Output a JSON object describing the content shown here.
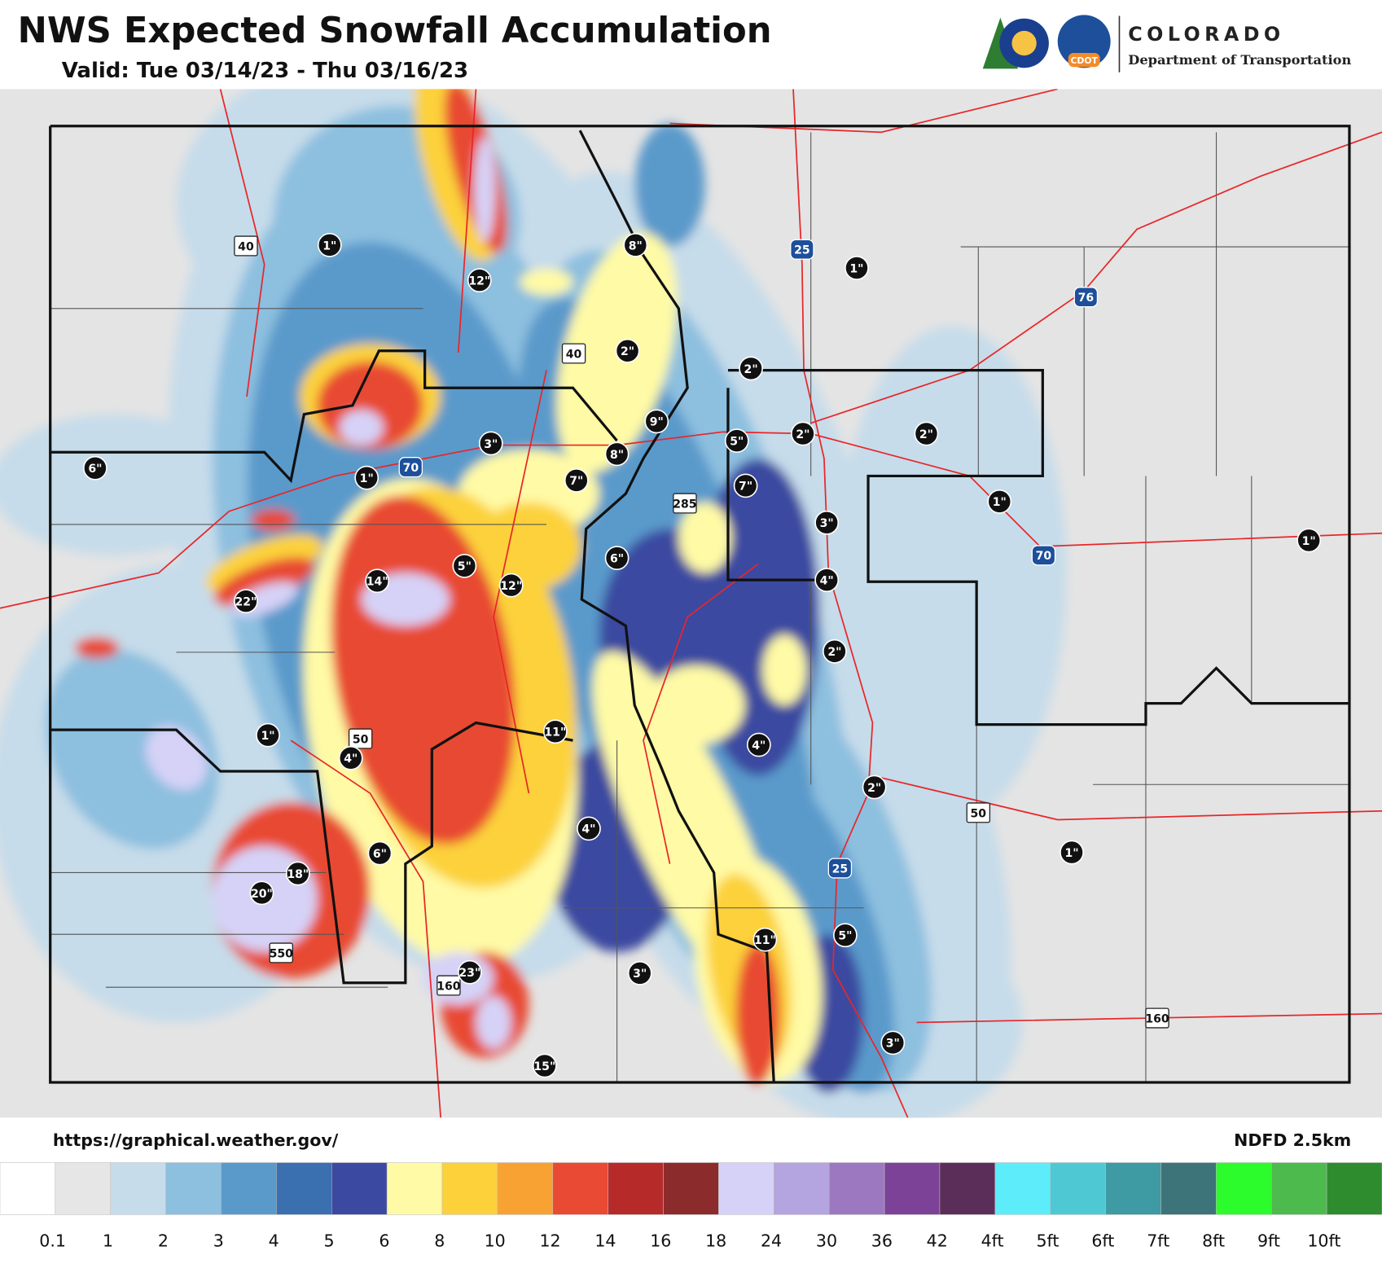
{
  "header": {
    "title": "NWS Expected Snowfall Accumulation",
    "valid": "Valid: Tue 03/14/23 - Thu 03/16/23"
  },
  "logo": {
    "name": "COLORADO",
    "department": "Department of Transportation",
    "badge": "CDOT"
  },
  "map": {
    "snow_labels": [
      "1\"",
      "12\"",
      "8\"",
      "1\"",
      "2\"",
      "2\"",
      "9\"",
      "3\"",
      "8\"",
      "5\"",
      "2\"",
      "2\"",
      "6\"",
      "1\"",
      "7\"",
      "7\"",
      "1\"",
      "3\"",
      "5\"",
      "6\"",
      "14\"",
      "12\"",
      "4\"",
      "1\"",
      "22\"",
      "2\"",
      "1\"",
      "11\"",
      "4\"",
      "4\"",
      "2\"",
      "4\"",
      "6\"",
      "1\"",
      "18\"",
      "20\"",
      "11\"",
      "5\"",
      "23\"",
      "3\"",
      "15\"",
      "3\""
    ],
    "highway_shields": [
      "40",
      "40",
      "25",
      "76",
      "70",
      "70",
      "285",
      "50",
      "50",
      "25",
      "550",
      "160",
      "160"
    ]
  },
  "footer": {
    "source": "https://graphical.weather.gov/",
    "model": "NDFD 2.5km"
  },
  "legend": {
    "colors": [
      "#ffffff",
      "#e6e6e6",
      "#c6dcea",
      "#8dbfdf",
      "#5a9acb",
      "#3a6fb0",
      "#3b4aa0",
      "#fffaa5",
      "#fcd13a",
      "#f9a234",
      "#e84a33",
      "#b72a2a",
      "#8c2b2b",
      "#d6d2f7",
      "#b4a4df",
      "#9b78c0",
      "#7c4298",
      "#5b2e5a",
      "#5cecfa",
      "#4ec9d3",
      "#3e9aa3",
      "#3d7479",
      "#2cfb2c",
      "#4cba4c",
      "#2e8b2e"
    ],
    "labels": [
      "0.1",
      "1",
      "2",
      "3",
      "4",
      "5",
      "6",
      "8",
      "10",
      "12",
      "14",
      "16",
      "18",
      "24",
      "30",
      "36",
      "42",
      "4ft",
      "5ft",
      "6ft",
      "7ft",
      "8ft",
      "9ft",
      "10ft"
    ]
  }
}
